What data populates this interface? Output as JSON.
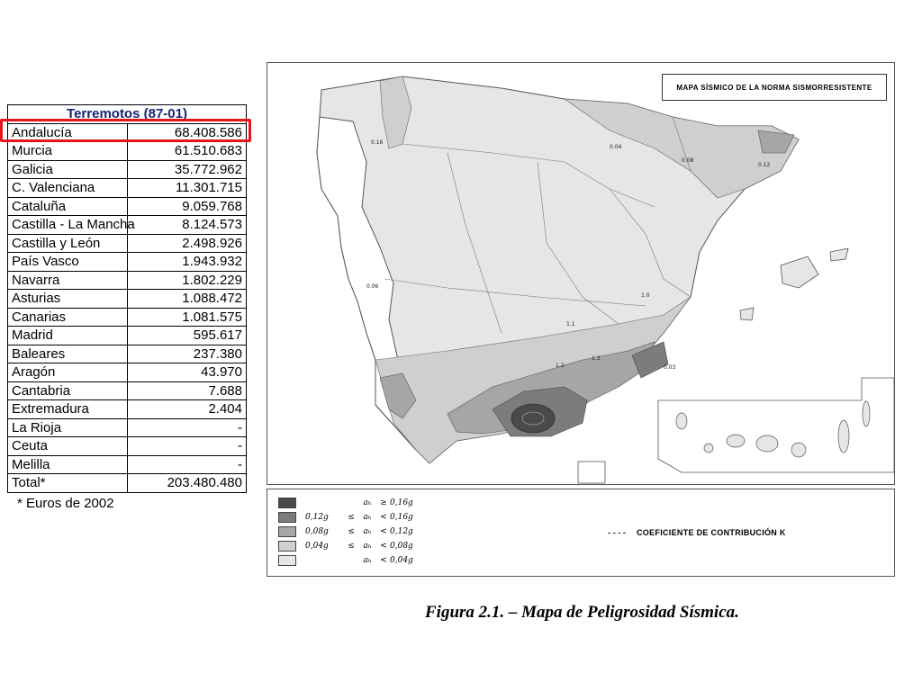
{
  "table": {
    "title": "Terremotos (87-01)",
    "rows": [
      {
        "region": "Andalucía",
        "amount": "68.408.586"
      },
      {
        "region": "Murcia",
        "amount": "61.510.683"
      },
      {
        "region": "Galicia",
        "amount": "35.772.962"
      },
      {
        "region": "C. Valenciana",
        "amount": "11.301.715"
      },
      {
        "region": "Cataluña",
        "amount": "9.059.768"
      },
      {
        "region": "Castilla - La Mancha",
        "amount": "8.124.573"
      },
      {
        "region": "Castilla y León",
        "amount": "2.498.926"
      },
      {
        "region": "País Vasco",
        "amount": "1.943.932"
      },
      {
        "region": "Navarra",
        "amount": "1.802.229"
      },
      {
        "region": "Asturias",
        "amount": "1.088.472"
      },
      {
        "region": "Canarias",
        "amount": "1.081.575"
      },
      {
        "region": "Madrid",
        "amount": "595.617"
      },
      {
        "region": "Baleares",
        "amount": "237.380"
      },
      {
        "region": "Aragón",
        "amount": "43.970"
      },
      {
        "region": "Cantabria",
        "amount": "7.688"
      },
      {
        "region": "Extremadura",
        "amount": "2.404"
      },
      {
        "region": "La Rioja",
        "amount": "-"
      },
      {
        "region": "Ceuta",
        "amount": "-"
      },
      {
        "region": "Melilla",
        "amount": "-"
      }
    ],
    "total": {
      "label": "Total*",
      "amount": "203.480.480"
    },
    "footnote": "* Euros de 2002",
    "highlighted_row": "Andalucía",
    "highlight_color": "#e8141c",
    "title_color": "#14247a"
  },
  "map": {
    "title": "MAPA SÍSMICO DE LA NORMA SISMORRESISTENTE",
    "contour_labels": [
      "0.04",
      "0.08",
      "0.12",
      "0.16",
      "1.0",
      "1.1",
      "1.2",
      "1.3",
      "0.03",
      "0.06"
    ],
    "legend": [
      {
        "lo": "",
        "op1": "",
        "var": "aₕ",
        "op2": "≥",
        "hi": "0,16g",
        "color": "#4a4a4a"
      },
      {
        "lo": "0,12g",
        "op1": "≤",
        "var": "aₕ",
        "op2": "<",
        "hi": "0,16g",
        "color": "#7c7c7c"
      },
      {
        "lo": "0,08g",
        "op1": "≤",
        "var": "aₕ",
        "op2": "<",
        "hi": "0,12g",
        "color": "#a6a6a6"
      },
      {
        "lo": "0,04g",
        "op1": "≤",
        "var": "aₕ",
        "op2": "<",
        "hi": "0,08g",
        "color": "#cfcfcf"
      },
      {
        "lo": "",
        "op1": "",
        "var": "aₕ",
        "op2": "<",
        "hi": "0,04g",
        "color": "#e6e6e6"
      }
    ],
    "contrib_label": "COEFICIENTE DE CONTRIBUCIÓN K"
  },
  "caption": "Figura 2.1. – Mapa de Peligrosidad Sísmica."
}
